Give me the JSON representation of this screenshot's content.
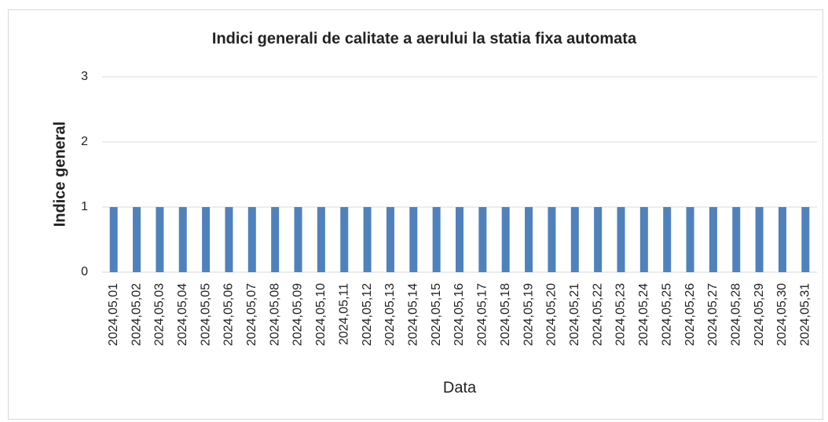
{
  "chart_data": {
    "type": "bar",
    "title": "Indici generali de calitate a aerului la statia fixa automata",
    "x_label": "Data",
    "y_label": "Indice general",
    "categories": [
      "2024,05,01",
      "2024,05,02",
      "2024,05,03",
      "2024,05,04",
      "2024,05,05",
      "2024,05,06",
      "2024,05,07",
      "2024,05,08",
      "2024,05,09",
      "2024,05,10",
      "2024,05,11",
      "2024,05,12",
      "2024,05,13",
      "2024,05,14",
      "2024,05,15",
      "2024,05,16",
      "2024,05,17",
      "2024,05,18",
      "2024,05,19",
      "2024,05,20",
      "2024,05,21",
      "2024,05,22",
      "2024,05,23",
      "2024,05,24",
      "2024,05,25",
      "2024,05,26",
      "2024,05,27",
      "2024,05,28",
      "2024,05,29",
      "2024,05,30",
      "2024,05,31"
    ],
    "values": [
      1,
      1,
      1,
      1,
      1,
      1,
      1,
      1,
      1,
      1,
      1,
      1,
      1,
      1,
      1,
      1,
      1,
      1,
      1,
      1,
      1,
      1,
      1,
      1,
      1,
      1,
      1,
      1,
      1,
      1,
      1
    ],
    "color": "#4f81bd",
    "ylim": [
      0,
      3
    ],
    "yticks": [
      0,
      1,
      2,
      3
    ],
    "grid": true
  }
}
